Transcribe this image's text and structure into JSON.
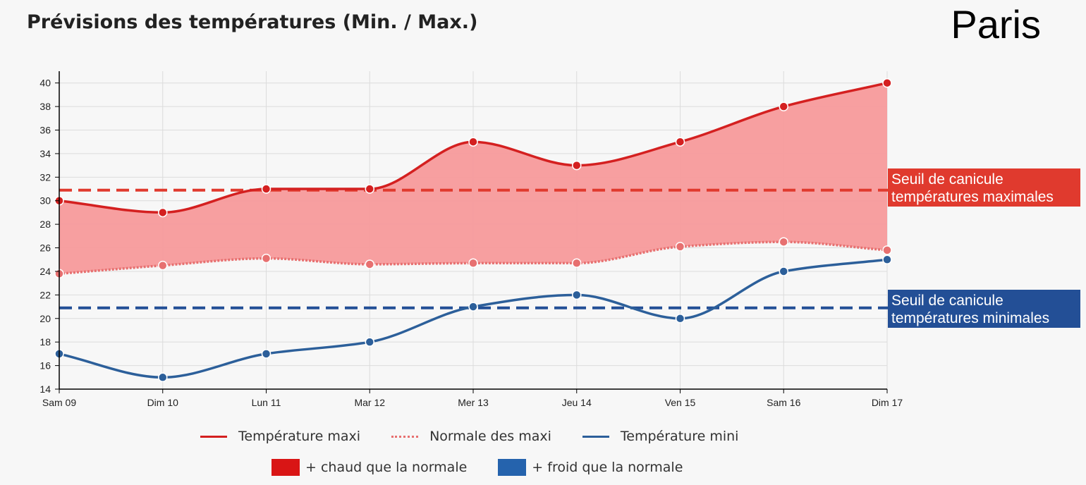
{
  "title": "Prévisions des températures (Min. / Max.)",
  "city": "Paris",
  "colors": {
    "max_line": "#d42020",
    "max_fill": "#f79a9b",
    "normal_line": "#e77070",
    "min_line": "#2c5f9a",
    "threshold_max": "#e03a2e",
    "threshold_min": "#234f96",
    "warm_swatch": "#d91515",
    "cold_swatch": "#2563ad"
  },
  "chart_data": {
    "type": "line",
    "categories": [
      "Sam 09",
      "Dim 10",
      "Lun 11",
      "Mar 12",
      "Mer 13",
      "Jeu 14",
      "Ven 15",
      "Sam 16",
      "Dim 17"
    ],
    "ylim": [
      14,
      41
    ],
    "yticks": [
      14,
      16,
      18,
      20,
      22,
      24,
      26,
      28,
      30,
      32,
      34,
      36,
      38,
      40
    ],
    "grid": true,
    "series": [
      {
        "name": "Température maxi",
        "values": [
          30,
          29,
          31,
          31,
          35,
          33,
          35,
          38,
          40
        ]
      },
      {
        "name": "Normale des maxi",
        "values": [
          23.8,
          24.5,
          25.1,
          24.6,
          24.7,
          24.7,
          26.1,
          26.5,
          25.8
        ]
      },
      {
        "name": "Température mini",
        "values": [
          17,
          15,
          17,
          18,
          21,
          22,
          20,
          24,
          25
        ]
      }
    ],
    "thresholds": [
      {
        "value": 30.9,
        "label_line1": "Seuil de canicule",
        "label_line2": "températures maximales"
      },
      {
        "value": 20.9,
        "label_line1": "Seuil de canicule",
        "label_line2": "températures minimales"
      }
    ]
  },
  "legend": {
    "max": "Température maxi",
    "normal": "Normale des maxi",
    "min": "Température mini",
    "warm": "+ chaud que la normale",
    "cold": "+ froid que la normale"
  }
}
